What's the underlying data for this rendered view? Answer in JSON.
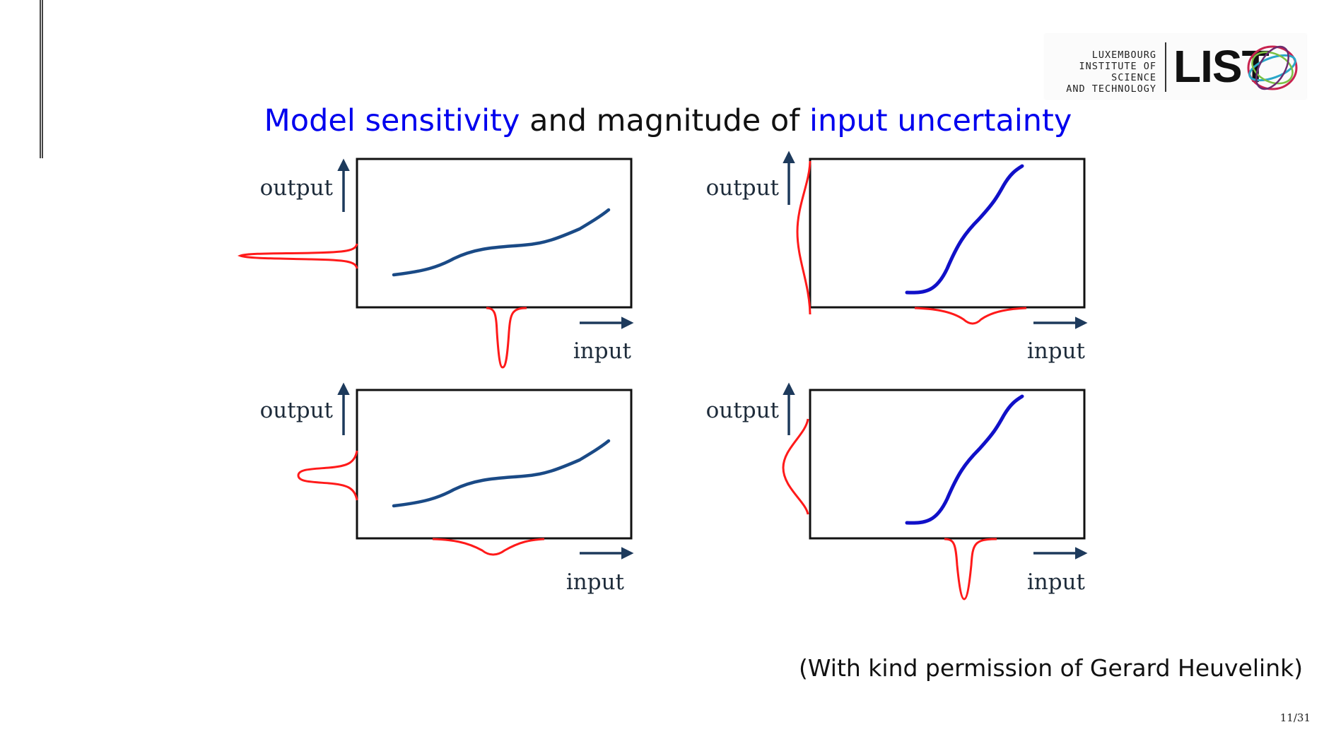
{
  "slide": {
    "title_part1": "Model sensitivity",
    "title_part2": " and magnitude of ",
    "title_part3": "input uncertainty",
    "credit": "(With kind permission of Gerard Heuvelink)",
    "page_number": "11/31"
  },
  "logo": {
    "line1": "LUXEMBOURG",
    "line2": "INSTITUTE OF SCIENCE",
    "line3": "AND TECHNOLOGY",
    "acronym": "LIST"
  },
  "panels": [
    {
      "output_label": "output",
      "input_label": "input",
      "input_spread": "narrow",
      "model_sensitivity": "low",
      "output_spread": "narrow"
    },
    {
      "output_label": "output",
      "input_label": "input",
      "input_spread": "wide",
      "model_sensitivity": "high",
      "output_spread": "wide"
    },
    {
      "output_label": "output",
      "input_label": "input",
      "input_spread": "wide",
      "model_sensitivity": "low",
      "output_spread": "moderate"
    },
    {
      "output_label": "output",
      "input_label": "input",
      "input_spread": "narrow",
      "model_sensitivity": "high",
      "output_spread": "moderate"
    }
  ],
  "colors": {
    "accent_blue": "#0000ee",
    "curve_low": "#1a4a86",
    "curve_high": "#1010c8",
    "distribution": "#ff1a1a",
    "axis_arrow": "#1d3a5c"
  }
}
